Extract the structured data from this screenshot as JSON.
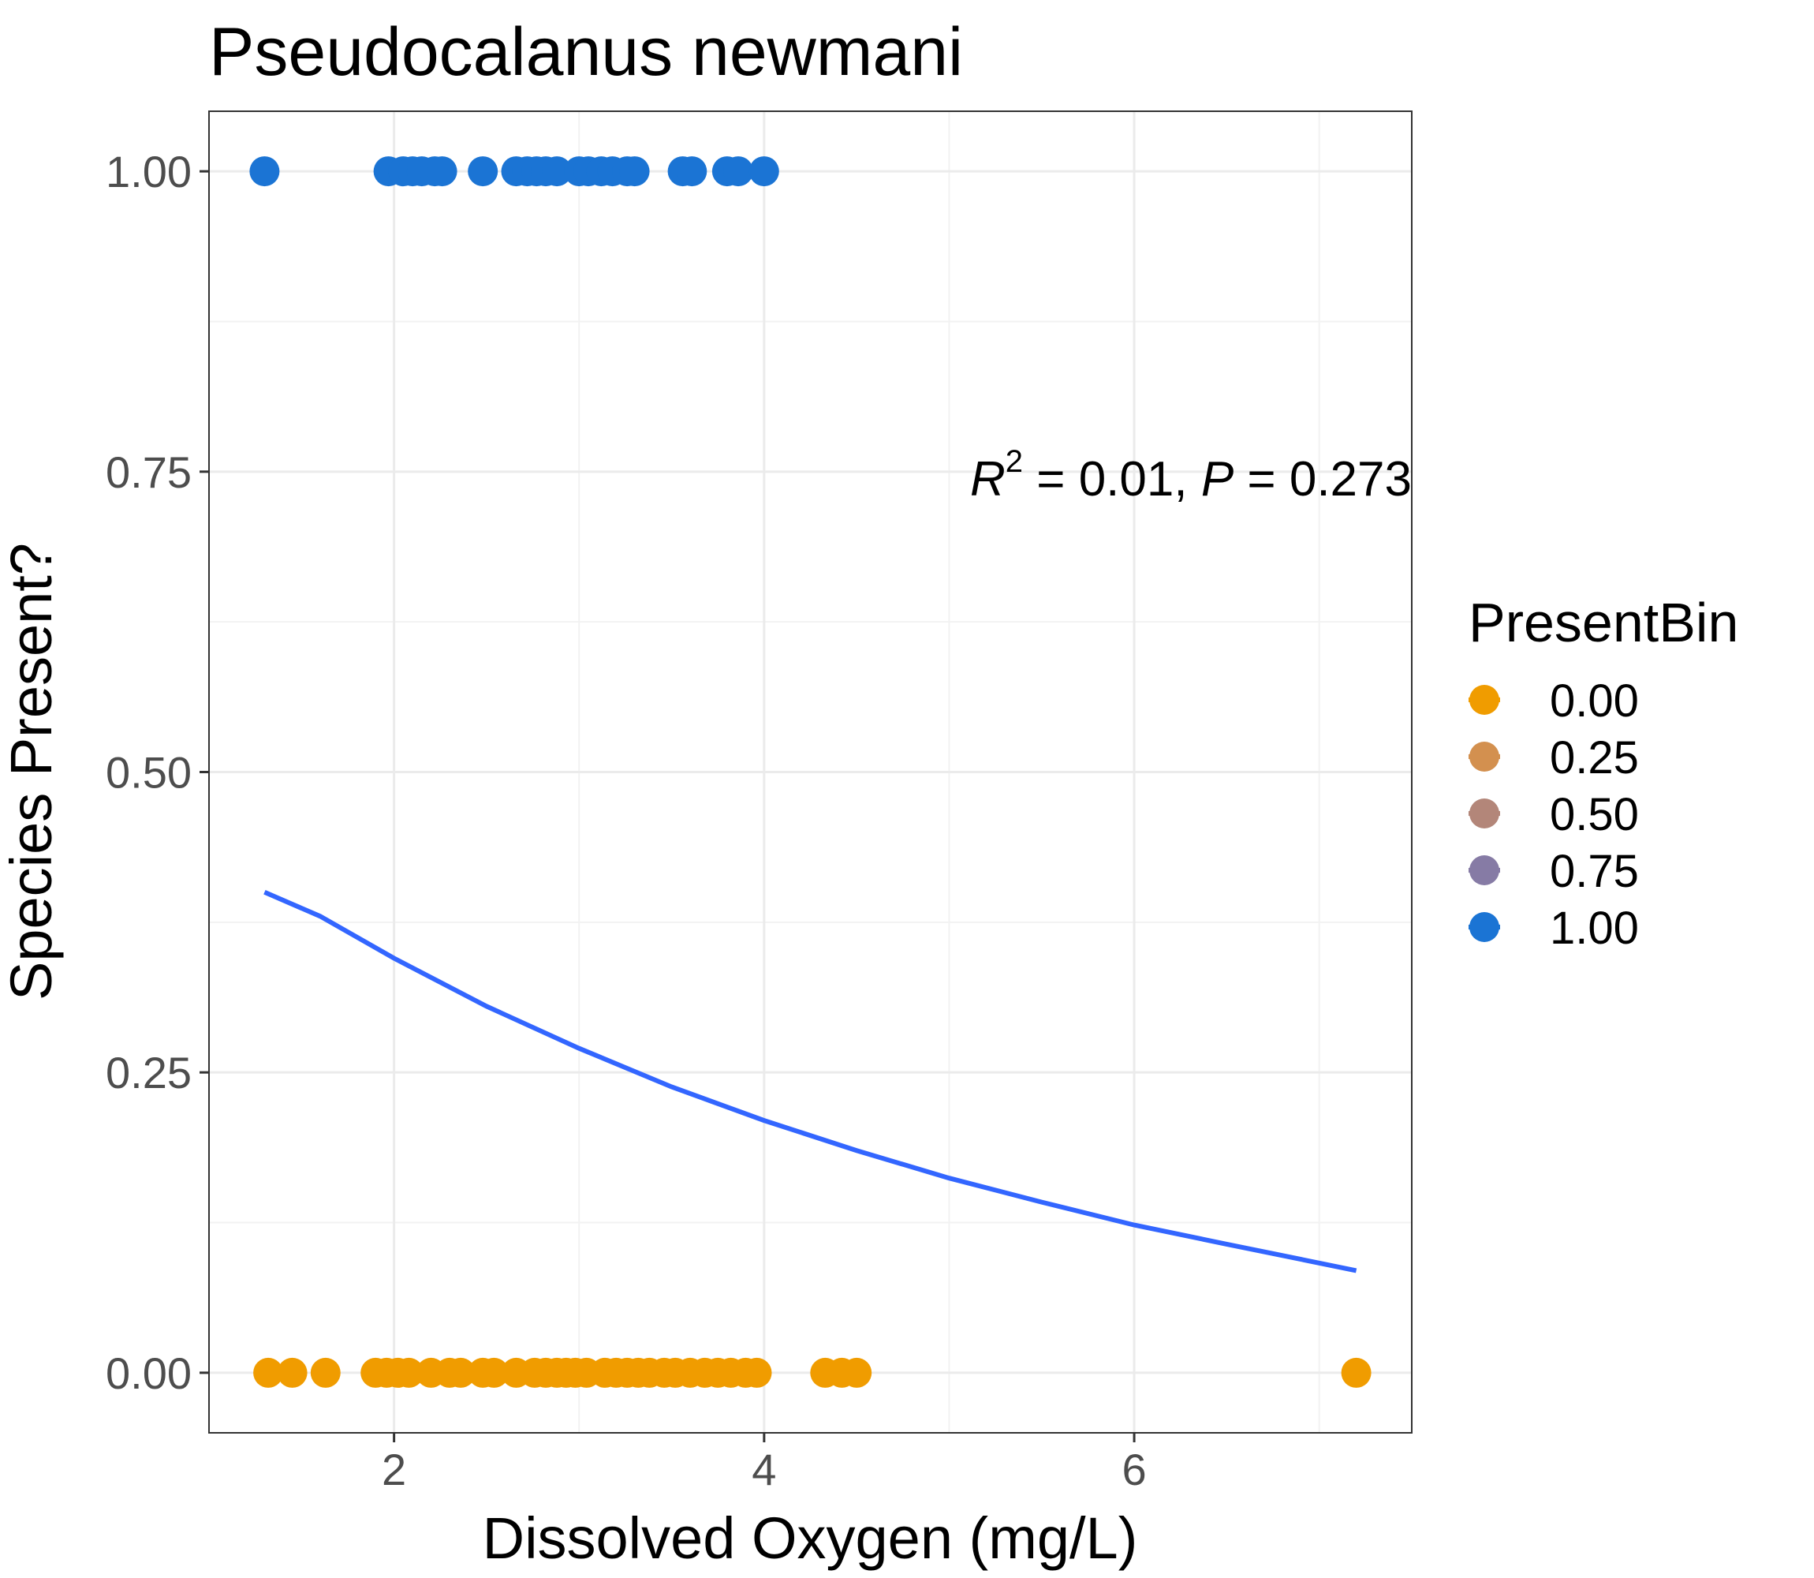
{
  "chart_data": {
    "type": "scatter",
    "title": "Pseudocalanus newmani",
    "xlabel": "Dissolved Oxygen (mg/L)",
    "ylabel": "Species Present?",
    "xlim": [
      1.0,
      7.5
    ],
    "ylim": [
      -0.05,
      1.05
    ],
    "x_ticks": [
      2,
      4,
      6
    ],
    "x_tick_labels": [
      "2",
      "4",
      "6"
    ],
    "y_ticks": [
      0,
      0.25,
      0.5,
      0.75,
      1.0
    ],
    "y_tick_labels": [
      "0.00",
      "0.25",
      "0.50",
      "0.75",
      "1.00"
    ],
    "grid": true,
    "annotation": {
      "r_symbol": "R",
      "r_exponent": "2",
      "r_value": " = 0.01, ",
      "p_symbol": "P",
      "p_value": " = 0.273"
    },
    "legend": {
      "title": "PresentBin",
      "position": "right",
      "items": [
        {
          "label": "0.00",
          "color": "#f09c00"
        },
        {
          "label": "0.25",
          "color": "#d3904f"
        },
        {
          "label": "0.50",
          "color": "#b38679"
        },
        {
          "label": "0.75",
          "color": "#867ba5"
        },
        {
          "label": "1.00",
          "color": "#1b74d4"
        }
      ]
    },
    "series": [
      {
        "present_bin": 1.0,
        "color": "#1b74d4",
        "points": [
          {
            "x": 1.3,
            "y": 1
          },
          {
            "x": 1.97,
            "y": 1
          },
          {
            "x": 2.05,
            "y": 1
          },
          {
            "x": 2.1,
            "y": 1
          },
          {
            "x": 2.15,
            "y": 1
          },
          {
            "x": 2.22,
            "y": 1
          },
          {
            "x": 2.26,
            "y": 1
          },
          {
            "x": 2.48,
            "y": 1
          },
          {
            "x": 2.66,
            "y": 1
          },
          {
            "x": 2.72,
            "y": 1
          },
          {
            "x": 2.77,
            "y": 1
          },
          {
            "x": 2.82,
            "y": 1
          },
          {
            "x": 2.88,
            "y": 1
          },
          {
            "x": 3.0,
            "y": 1
          },
          {
            "x": 3.05,
            "y": 1
          },
          {
            "x": 3.12,
            "y": 1
          },
          {
            "x": 3.18,
            "y": 1
          },
          {
            "x": 3.26,
            "y": 1
          },
          {
            "x": 3.3,
            "y": 1
          },
          {
            "x": 3.56,
            "y": 1
          },
          {
            "x": 3.61,
            "y": 1
          },
          {
            "x": 3.8,
            "y": 1
          },
          {
            "x": 3.86,
            "y": 1
          },
          {
            "x": 4.0,
            "y": 1
          }
        ]
      },
      {
        "present_bin": 0.0,
        "color": "#f09c00",
        "points": [
          {
            "x": 1.32,
            "y": 0
          },
          {
            "x": 1.45,
            "y": 0
          },
          {
            "x": 1.63,
            "y": 0
          },
          {
            "x": 1.9,
            "y": 0
          },
          {
            "x": 1.96,
            "y": 0
          },
          {
            "x": 2.02,
            "y": 0
          },
          {
            "x": 2.08,
            "y": 0
          },
          {
            "x": 2.2,
            "y": 0
          },
          {
            "x": 2.3,
            "y": 0
          },
          {
            "x": 2.36,
            "y": 0
          },
          {
            "x": 2.48,
            "y": 0
          },
          {
            "x": 2.54,
            "y": 0
          },
          {
            "x": 2.66,
            "y": 0
          },
          {
            "x": 2.76,
            "y": 0
          },
          {
            "x": 2.82,
            "y": 0
          },
          {
            "x": 2.88,
            "y": 0
          },
          {
            "x": 2.93,
            "y": 0
          },
          {
            "x": 2.98,
            "y": 0
          },
          {
            "x": 3.04,
            "y": 0
          },
          {
            "x": 3.14,
            "y": 0
          },
          {
            "x": 3.2,
            "y": 0
          },
          {
            "x": 3.26,
            "y": 0
          },
          {
            "x": 3.32,
            "y": 0
          },
          {
            "x": 3.38,
            "y": 0
          },
          {
            "x": 3.46,
            "y": 0
          },
          {
            "x": 3.52,
            "y": 0
          },
          {
            "x": 3.6,
            "y": 0
          },
          {
            "x": 3.68,
            "y": 0
          },
          {
            "x": 3.75,
            "y": 0
          },
          {
            "x": 3.82,
            "y": 0
          },
          {
            "x": 3.9,
            "y": 0
          },
          {
            "x": 3.96,
            "y": 0
          },
          {
            "x": 4.33,
            "y": 0
          },
          {
            "x": 4.42,
            "y": 0
          },
          {
            "x": 4.5,
            "y": 0
          },
          {
            "x": 7.2,
            "y": 0
          }
        ]
      }
    ],
    "fit_line": {
      "color": "#3366ff",
      "points": [
        {
          "x": 1.3,
          "y": 0.4
        },
        {
          "x": 1.6,
          "y": 0.38
        },
        {
          "x": 2.0,
          "y": 0.345
        },
        {
          "x": 2.5,
          "y": 0.305
        },
        {
          "x": 3.0,
          "y": 0.27
        },
        {
          "x": 3.5,
          "y": 0.238
        },
        {
          "x": 4.0,
          "y": 0.21
        },
        {
          "x": 4.5,
          "y": 0.185
        },
        {
          "x": 5.0,
          "y": 0.162
        },
        {
          "x": 5.5,
          "y": 0.142
        },
        {
          "x": 6.0,
          "y": 0.123
        },
        {
          "x": 6.5,
          "y": 0.107
        },
        {
          "x": 7.2,
          "y": 0.085
        }
      ]
    }
  }
}
